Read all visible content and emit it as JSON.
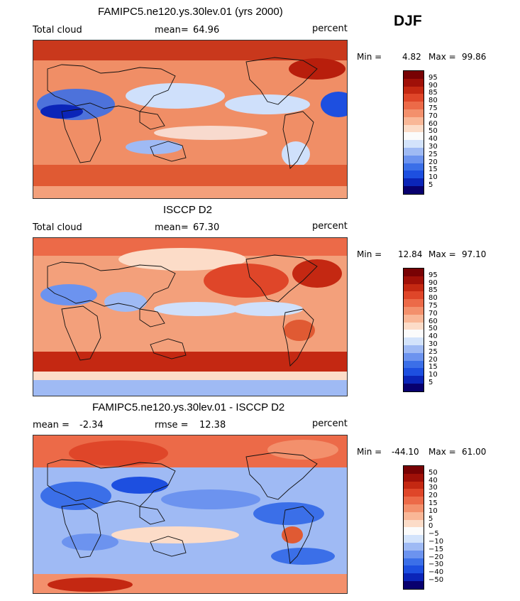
{
  "season": "DJF",
  "palettes": {
    "abs": [
      "#08006e",
      "#0b25b8",
      "#1d4fe0",
      "#3b6fe8",
      "#6c93ef",
      "#9fbaf4",
      "#d3e3fb",
      "#fbfbfb",
      "#fcdcc8",
      "#f9b797",
      "#f3906c",
      "#ec6a48",
      "#df4629",
      "#c42812",
      "#a01008",
      "#780204"
    ],
    "diff": [
      "#08006e",
      "#0b25b8",
      "#1d4fe0",
      "#3b6fe8",
      "#6c93ef",
      "#9fbaf4",
      "#d3e3fb",
      "#fbfbfb",
      "#fcdcc8",
      "#f9b797",
      "#f3906c",
      "#ec6a48",
      "#df4629",
      "#c42812",
      "#a01008",
      "#780204"
    ]
  },
  "panels": [
    {
      "title": "FAMIPC5.ne120.ys.30lev.01 (yrs 2000)",
      "left_label": "Total cloud",
      "mean_label": "mean=",
      "mean_value": "64.96",
      "units": "percent",
      "min_label": "Min =",
      "min_value": "4.82",
      "max_label": "Max =",
      "max_value": "99.86",
      "colorbar_labels": [
        "95",
        "90",
        "85",
        "80",
        "75",
        "70",
        "60",
        "50",
        "40",
        "30",
        "25",
        "20",
        "15",
        "10",
        "5"
      ]
    },
    {
      "title": "ISCCP D2",
      "left_label": "Total cloud",
      "mean_label": "mean=",
      "mean_value": "67.30",
      "units": "percent",
      "min_label": "Min =",
      "min_value": "12.84",
      "max_label": "Max =",
      "max_value": "97.10",
      "colorbar_labels": [
        "95",
        "90",
        "85",
        "80",
        "75",
        "70",
        "60",
        "50",
        "40",
        "30",
        "25",
        "20",
        "15",
        "10",
        "5"
      ]
    },
    {
      "title": "FAMIPC5.ne120.ys.30lev.01 - ISCCP D2",
      "left_label": "mean =",
      "left_value": "-2.34",
      "mean_label": "rmse =",
      "mean_value": "12.38",
      "units": "percent",
      "min_label": "Min =",
      "min_value": "-44.10",
      "max_label": "Max =",
      "max_value": "61.00",
      "colorbar_labels": [
        "50",
        "40",
        "30",
        "20",
        "15",
        "10",
        "5",
        "0",
        "−5",
        "−10",
        "−15",
        "−20",
        "−30",
        "−40",
        "−50"
      ]
    }
  ],
  "chart_data": [
    {
      "type": "heatmap",
      "title": "FAMIPC5.ne120.ys.30lev.01 (yrs 2000)",
      "variable": "Total cloud",
      "units": "percent",
      "season": "DJF",
      "mean": 64.96,
      "min": 4.82,
      "max": 99.86,
      "levels": [
        5,
        10,
        15,
        20,
        25,
        30,
        40,
        50,
        60,
        70,
        75,
        80,
        85,
        90,
        95
      ]
    },
    {
      "type": "heatmap",
      "title": "ISCCP D2",
      "variable": "Total cloud",
      "units": "percent",
      "season": "DJF",
      "mean": 67.3,
      "min": 12.84,
      "max": 97.1,
      "levels": [
        5,
        10,
        15,
        20,
        25,
        30,
        40,
        50,
        60,
        70,
        75,
        80,
        85,
        90,
        95
      ]
    },
    {
      "type": "heatmap",
      "title": "FAMIPC5.ne120.ys.30lev.01 - ISCCP D2",
      "units": "percent",
      "season": "DJF",
      "mean": -2.34,
      "rmse": 12.38,
      "min": -44.1,
      "max": 61.0,
      "levels": [
        -50,
        -40,
        -30,
        -20,
        -15,
        -10,
        -5,
        0,
        5,
        10,
        15,
        20,
        30,
        40,
        50
      ]
    }
  ]
}
